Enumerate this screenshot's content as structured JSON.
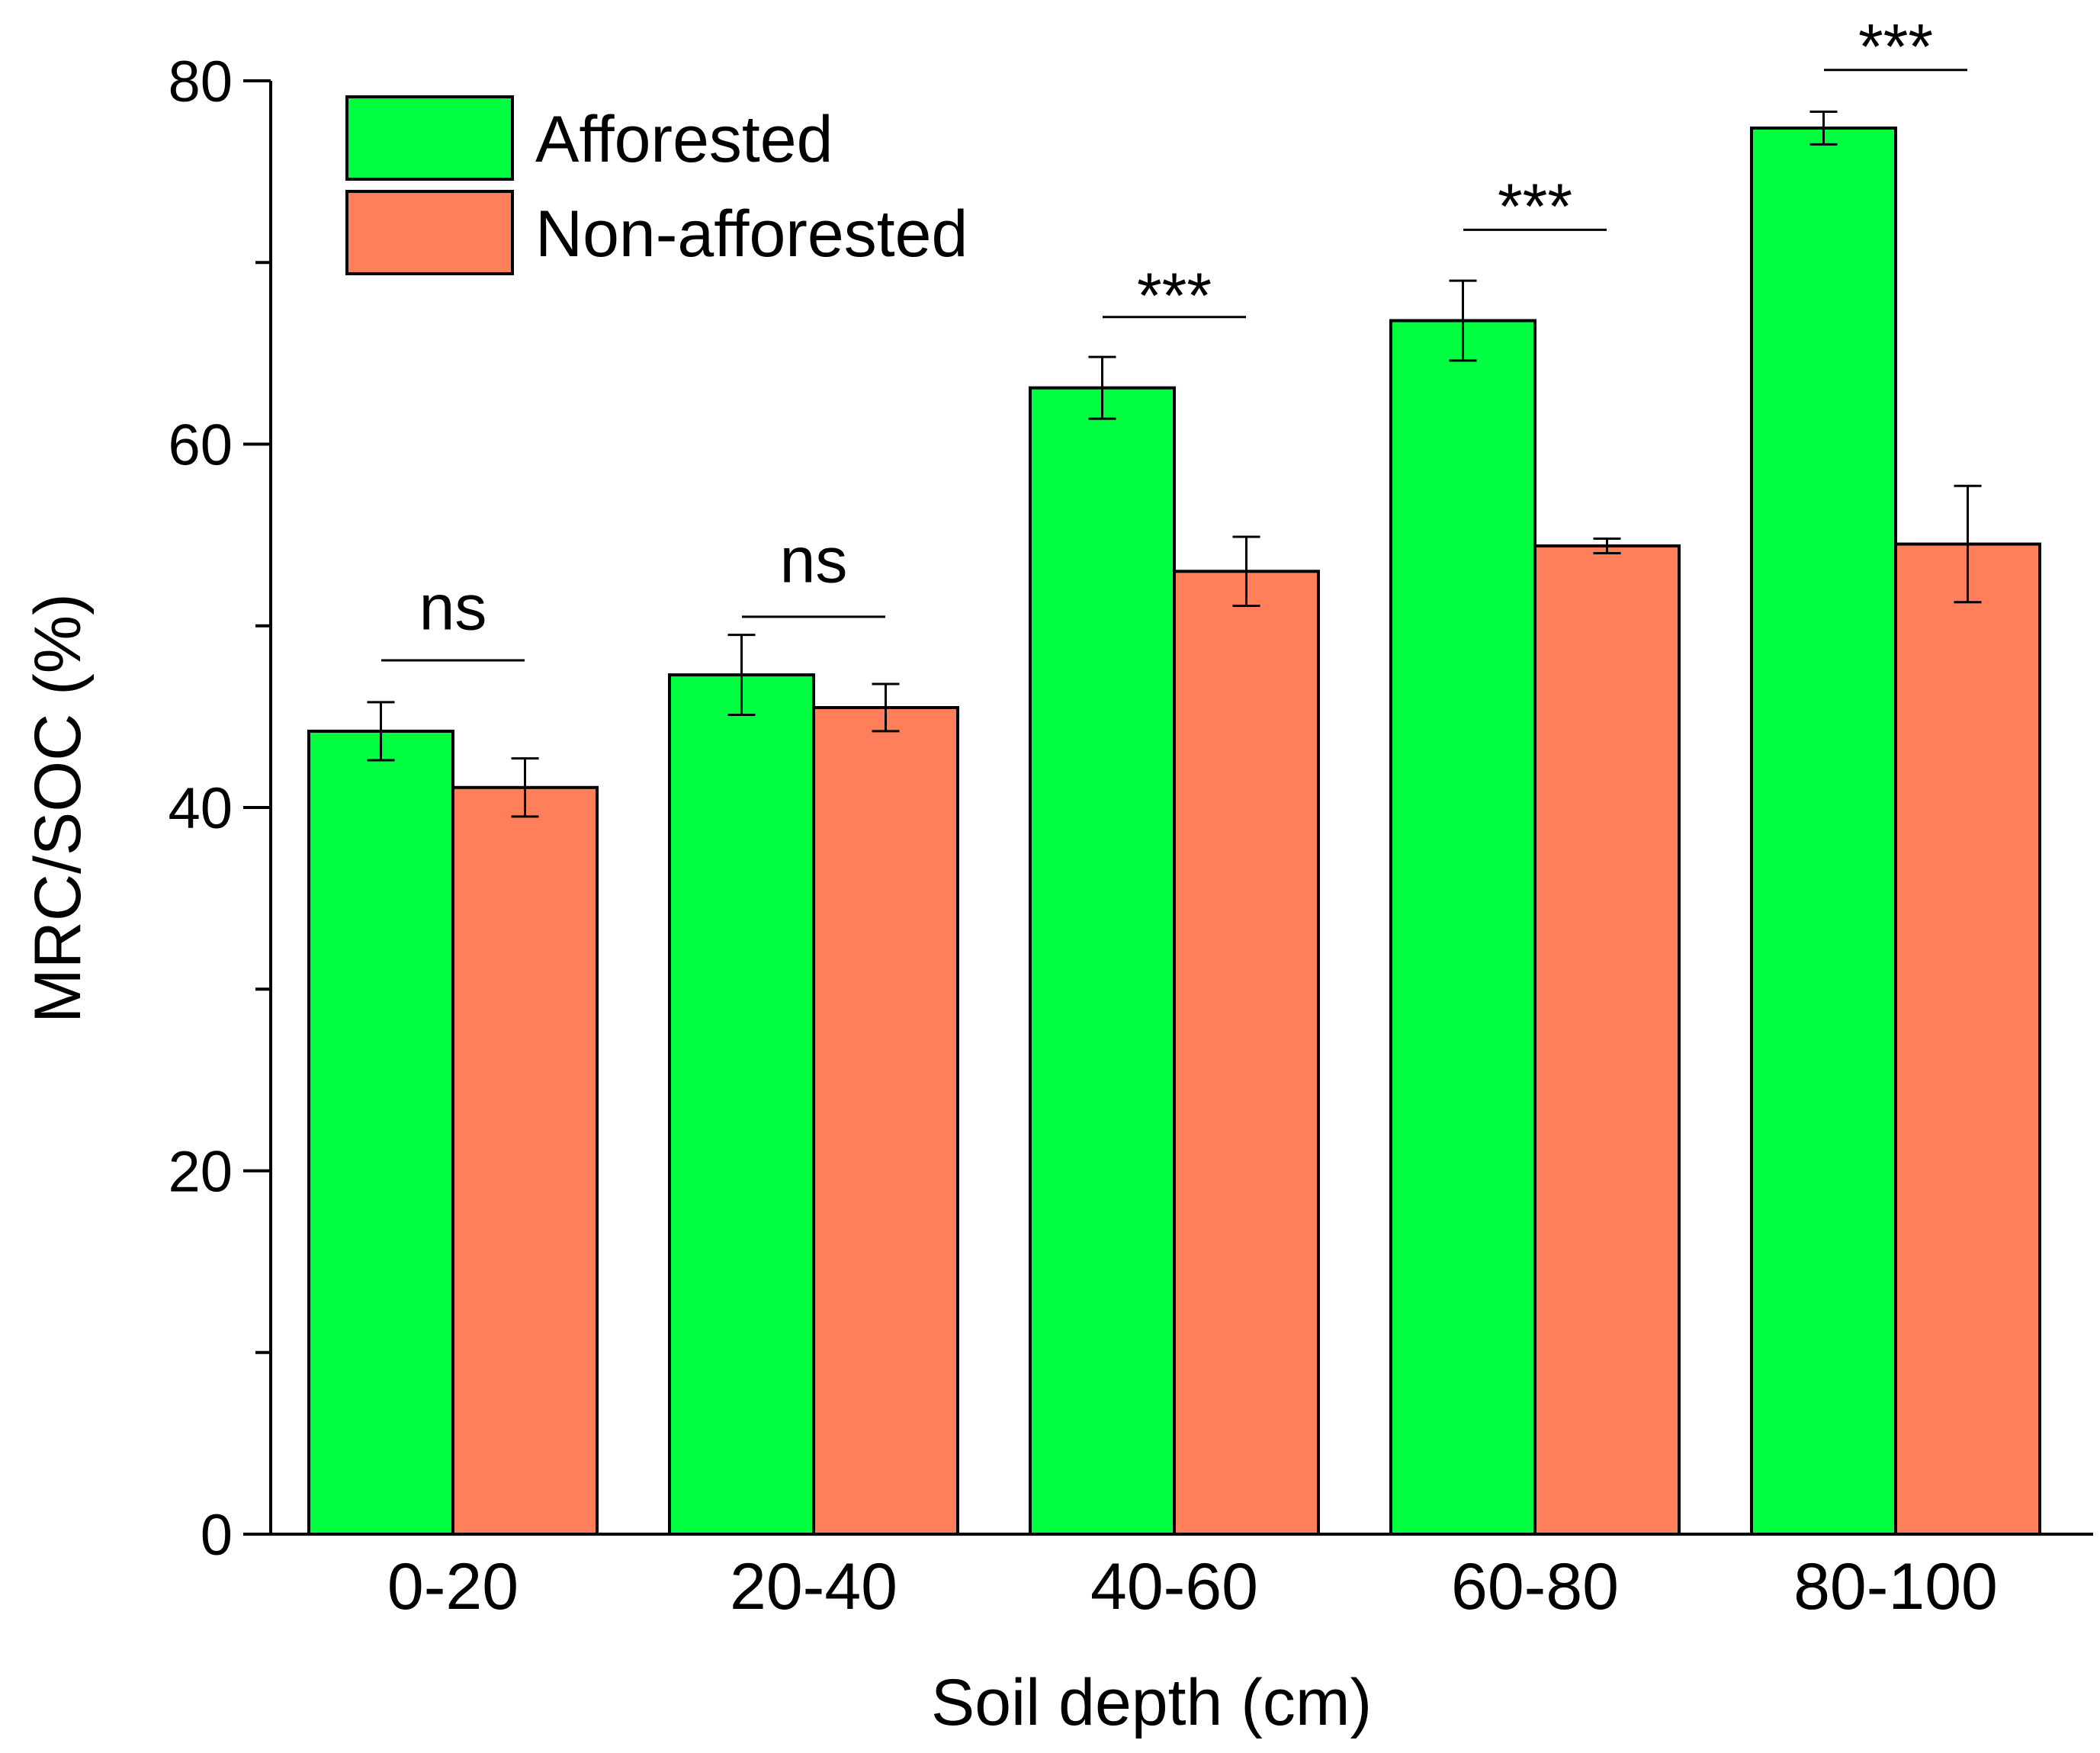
{
  "chart_data": {
    "type": "bar",
    "title": "",
    "xlabel": "Soil depth (cm)",
    "ylabel": "MRC/SOC (%)",
    "ylim": [
      0,
      80
    ],
    "yticks": [
      0,
      20,
      40,
      60,
      80
    ],
    "yticks_minor": [
      10,
      30,
      50,
      70
    ],
    "grid": false,
    "legend_position": "top-left",
    "categories": [
      "0-20",
      "20-40",
      "40-60",
      "60-80",
      "80-100"
    ],
    "series": [
      {
        "name": "Afforested",
        "color": "#00FF40",
        "values": [
          44.2,
          47.3,
          63.1,
          66.8,
          77.4
        ],
        "errors": [
          1.6,
          2.2,
          1.7,
          2.2,
          0.9
        ]
      },
      {
        "name": "Non-afforested",
        "color": "#FF7F5A",
        "values": [
          41.1,
          45.5,
          53.0,
          54.4,
          54.5
        ],
        "errors": [
          1.6,
          1.3,
          1.9,
          0.4,
          3.2
        ]
      }
    ],
    "significance": [
      "ns",
      "ns",
      "***",
      "***",
      "***"
    ],
    "significance_line_level": [
      48.1,
      50.5,
      67.0,
      71.8,
      80.6
    ],
    "significance_label_level": [
      49.8,
      52.4,
      68.4,
      73.3,
      82.1
    ]
  }
}
